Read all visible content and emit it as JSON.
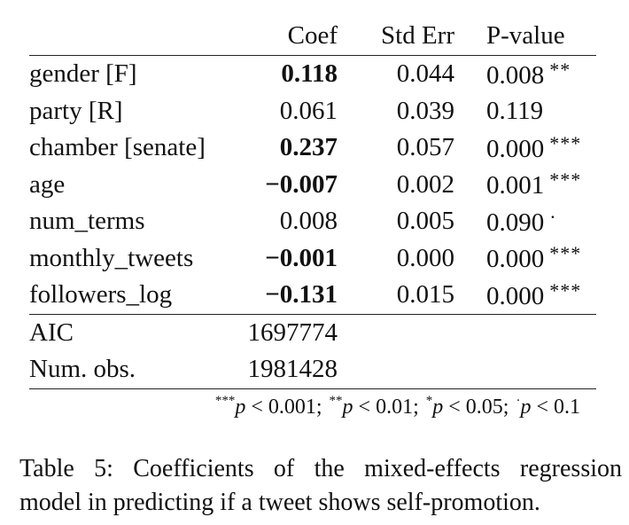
{
  "table": {
    "headers": {
      "variable": "",
      "coef": "Coef",
      "std_err": "Std Err",
      "p_value": "P-value"
    },
    "rows": [
      {
        "variable": "gender [F]",
        "coef": "0.118",
        "coef_bold": true,
        "std_err": "0.044",
        "p_value": "0.008",
        "stars": "**"
      },
      {
        "variable": "party [R]",
        "coef": "0.061",
        "coef_bold": false,
        "std_err": "0.039",
        "p_value": "0.119",
        "stars": ""
      },
      {
        "variable": "chamber [senate]",
        "coef": "0.237",
        "coef_bold": true,
        "std_err": "0.057",
        "p_value": "0.000",
        "stars": "***"
      },
      {
        "variable": "age",
        "coef": "−0.007",
        "coef_bold": true,
        "std_err": "0.002",
        "p_value": "0.001",
        "stars": "***"
      },
      {
        "variable": "num_terms",
        "coef": "0.008",
        "coef_bold": false,
        "std_err": "0.005",
        "p_value": "0.090",
        "stars": "·"
      },
      {
        "variable": "monthly_tweets",
        "coef": "−0.001",
        "coef_bold": true,
        "std_err": "0.000",
        "p_value": "0.000",
        "stars": "***"
      },
      {
        "variable": "followers_log",
        "coef": "−0.131",
        "coef_bold": true,
        "std_err": "0.015",
        "p_value": "0.000",
        "stars": "***"
      }
    ],
    "summary": [
      {
        "label": "AIC",
        "value": "1697774"
      },
      {
        "label": "Num. obs.",
        "value": "1981428"
      }
    ],
    "footnote": [
      {
        "mark": "***",
        "var": "p",
        "rel": " < 0.001;"
      },
      {
        "mark": "**",
        "var": "p",
        "rel": " < 0.01;"
      },
      {
        "mark": "*",
        "var": "p",
        "rel": " < 0.05;"
      },
      {
        "mark": "·",
        "var": "p",
        "rel": " < 0.1"
      }
    ]
  },
  "caption": {
    "line1": "Table 5: Coefficients of the mixed-effects regression",
    "line2": "model in predicting if a tweet shows self-promotion."
  }
}
